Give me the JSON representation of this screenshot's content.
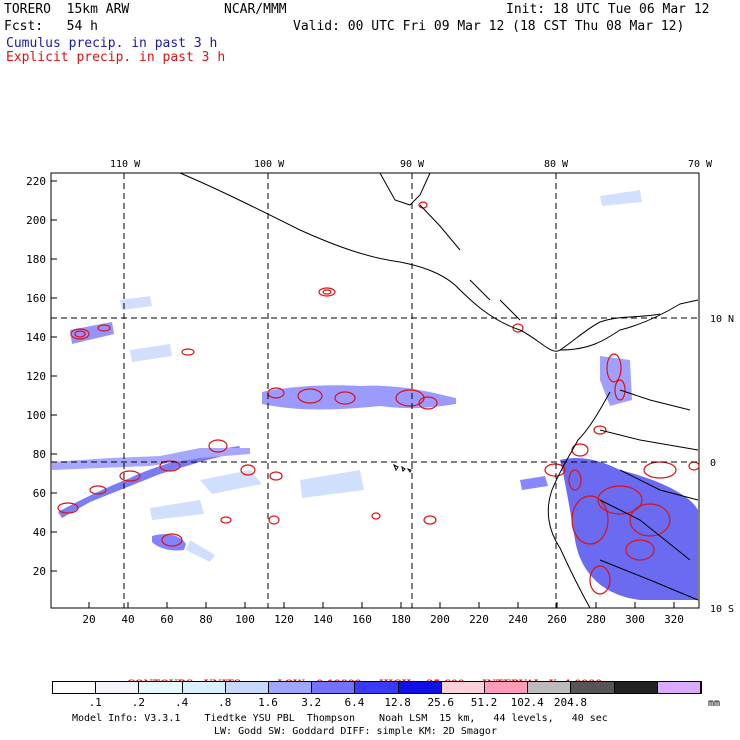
{
  "header": {
    "line1_left": "TORERO  15km ARW",
    "line1_center": "NCAR/MMM",
    "line1_right": "Init: 18 UTC Tue 06 Mar 12",
    "line2_left": "Fcst:   54 h",
    "line2_right": "Valid: 00 UTC Fri 09 Mar 12 (18 CST Thu 08 Mar 12)",
    "legend_cumulus": "Cumulus precip. in past 3 h",
    "legend_explicit": "Explicit precip. in past 3 h"
  },
  "map": {
    "lon_labels": [
      "110 W",
      "100 W",
      "90 W",
      "80 W",
      "70 W"
    ],
    "lat_labels_right": [
      "10 N",
      "0",
      "10 S"
    ],
    "y_ticks": [
      "220",
      "200",
      "180",
      "160",
      "140",
      "120",
      "100",
      "80",
      "60",
      "40",
      "20"
    ],
    "x_ticks": [
      "20",
      "40",
      "60",
      "80",
      "100",
      "120",
      "140",
      "160",
      "180",
      "200",
      "220",
      "240",
      "260",
      "280",
      "300",
      "320"
    ]
  },
  "contour_info": {
    "contours": "CONTOURS:  UNITS=mm  LOW= 0.10000",
    "high": "HIGH=  25.600",
    "interval": "INTERVAL=X  4.0000"
  },
  "colorbar": {
    "colors": [
      "#ffffff",
      "#f4f4ff",
      "#e6faff",
      "#d8f0ff",
      "#c6d8ff",
      "#a0a6ff",
      "#7272ff",
      "#3a3aff",
      "#1010e6",
      "#ffd0dc",
      "#ff9cbc",
      "#bbbbbb",
      "#555555",
      "#222222",
      "#d9aaff"
    ],
    "labels": [
      ".1",
      ".2",
      ".4",
      ".8",
      "1.6",
      "3.2",
      "6.4",
      "12.8",
      "25.6",
      "51.2",
      "102.4",
      "204.8"
    ],
    "units": "mm"
  },
  "footer": {
    "line1": "Model Info: V3.3.1    Tiedtke YSU PBL  Thompson    Noah LSM  15 km,   44 levels,   40 sec",
    "line2": "LW: Godd SW: Goddard DIFF: simple KM: 2D Smagor"
  }
}
